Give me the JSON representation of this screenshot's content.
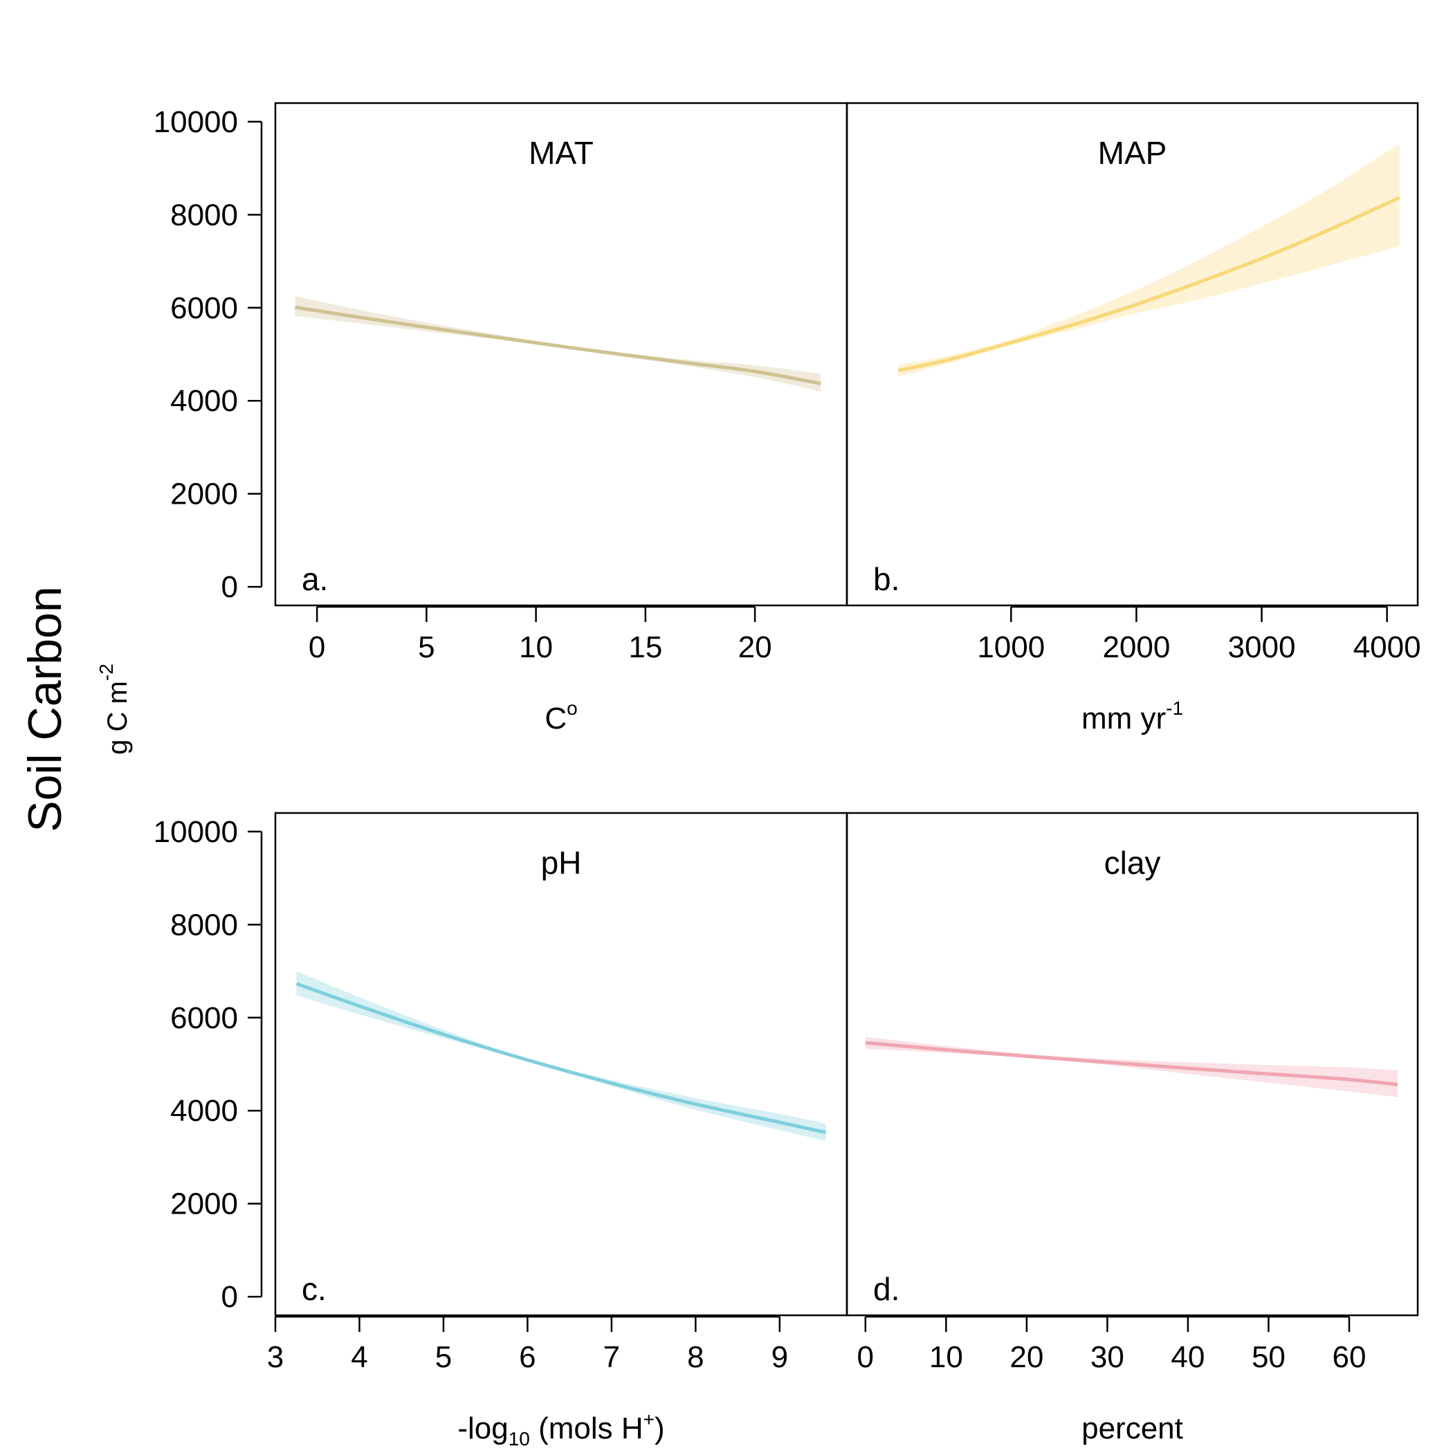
{
  "y_axis": {
    "title": "Soil Carbon",
    "unit_base": "g C m",
    "unit_sup": "-2",
    "ticks": [
      0,
      2000,
      4000,
      6000,
      8000,
      10000
    ],
    "tick_labels": [
      "0",
      "2000",
      "4000",
      "6000",
      "8000",
      "10000"
    ]
  },
  "chart_data": [
    {
      "type": "line",
      "panel": "a.",
      "title": "MAT",
      "xlabel": "C",
      "xlabel_sup": "o",
      "ylabel": "Soil Carbon g C m-2",
      "xlim": [
        -1.9,
        24.2
      ],
      "ylim": [
        -400,
        10400
      ],
      "xticks": [
        0,
        5,
        10,
        15,
        20
      ],
      "xtick_labels": [
        "0",
        "5",
        "10",
        "15",
        "20"
      ],
      "color": "#CFC292",
      "series": [
        {
          "x": [
            -1,
            2,
            5,
            8,
            11,
            14,
            17,
            20,
            23
          ],
          "y": [
            6010,
            5790,
            5580,
            5380,
            5180,
            4990,
            4810,
            4630,
            4370
          ],
          "lower": [
            5820,
            5660,
            5490,
            5330,
            5150,
            4950,
            4740,
            4510,
            4200
          ],
          "upper": [
            6250,
            5950,
            5680,
            5440,
            5210,
            5030,
            4880,
            4760,
            4580
          ]
        }
      ]
    },
    {
      "type": "line",
      "panel": "b.",
      "title": "MAP",
      "xlabel": "mm yr",
      "xlabel_sup": "-1",
      "ylabel": "Soil Carbon g C m-2",
      "xlim": [
        -310,
        4245
      ],
      "ylim": [
        -400,
        10400
      ],
      "xticks": [
        1000,
        2000,
        3000,
        4000
      ],
      "xtick_labels": [
        "1000",
        "2000",
        "3000",
        "4000"
      ],
      "color": "#F8D878",
      "series": [
        {
          "x": [
            100,
            500,
            1000,
            1500,
            2000,
            2500,
            3000,
            3500,
            4100
          ],
          "y": [
            4650,
            4880,
            5250,
            5640,
            6070,
            6550,
            7060,
            7630,
            8370
          ],
          "lower": [
            4520,
            4800,
            5200,
            5530,
            5880,
            6180,
            6520,
            6880,
            7320
          ],
          "upper": [
            4780,
            4970,
            5320,
            5820,
            6380,
            7030,
            7740,
            8500,
            9530
          ]
        }
      ]
    },
    {
      "type": "line",
      "panel": "c.",
      "title": "pH",
      "xlabel": "-log",
      "xlabel_sub": "10",
      "xlabel_mid": " (mols H",
      "xlabel_sup": "+",
      "xlabel_end": ")",
      "ylabel": "Soil Carbon g C m-2",
      "xlim": [
        3,
        9.8
      ],
      "ylim": [
        -400,
        10400
      ],
      "xticks": [
        3,
        4,
        5,
        6,
        7,
        8,
        9
      ],
      "xtick_labels": [
        "3",
        "4",
        "5",
        "6",
        "7",
        "8",
        "9"
      ],
      "color": "#7ECFDD",
      "series": [
        {
          "x": [
            3.25,
            4,
            5,
            6,
            7,
            8,
            9,
            9.55
          ],
          "y": [
            6730,
            6250,
            5640,
            5090,
            4590,
            4140,
            3750,
            3530
          ],
          "lower": [
            6480,
            6070,
            5560,
            5080,
            4530,
            4020,
            3580,
            3350
          ],
          "upper": [
            7000,
            6440,
            5740,
            5110,
            4660,
            4270,
            3930,
            3720
          ]
        }
      ]
    },
    {
      "type": "line",
      "panel": "d.",
      "title": "clay",
      "xlabel": "percent",
      "ylabel": "Soil Carbon g C m-2",
      "xlim": [
        -2.3,
        68.5
      ],
      "ylim": [
        -400,
        10400
      ],
      "xticks": [
        0,
        10,
        20,
        30,
        40,
        50,
        60
      ],
      "xtick_labels": [
        "0",
        "10",
        "20",
        "30",
        "40",
        "50",
        "60"
      ],
      "color": "#F0A5B2",
      "series": [
        {
          "x": [
            0,
            10,
            20,
            30,
            40,
            50,
            60,
            66
          ],
          "y": [
            5460,
            5310,
            5170,
            5040,
            4910,
            4790,
            4670,
            4560
          ],
          "lower": [
            5330,
            5240,
            5140,
            4980,
            4790,
            4600,
            4410,
            4290
          ],
          "upper": [
            5590,
            5390,
            5220,
            5110,
            5040,
            4980,
            4930,
            4870
          ]
        }
      ]
    }
  ]
}
